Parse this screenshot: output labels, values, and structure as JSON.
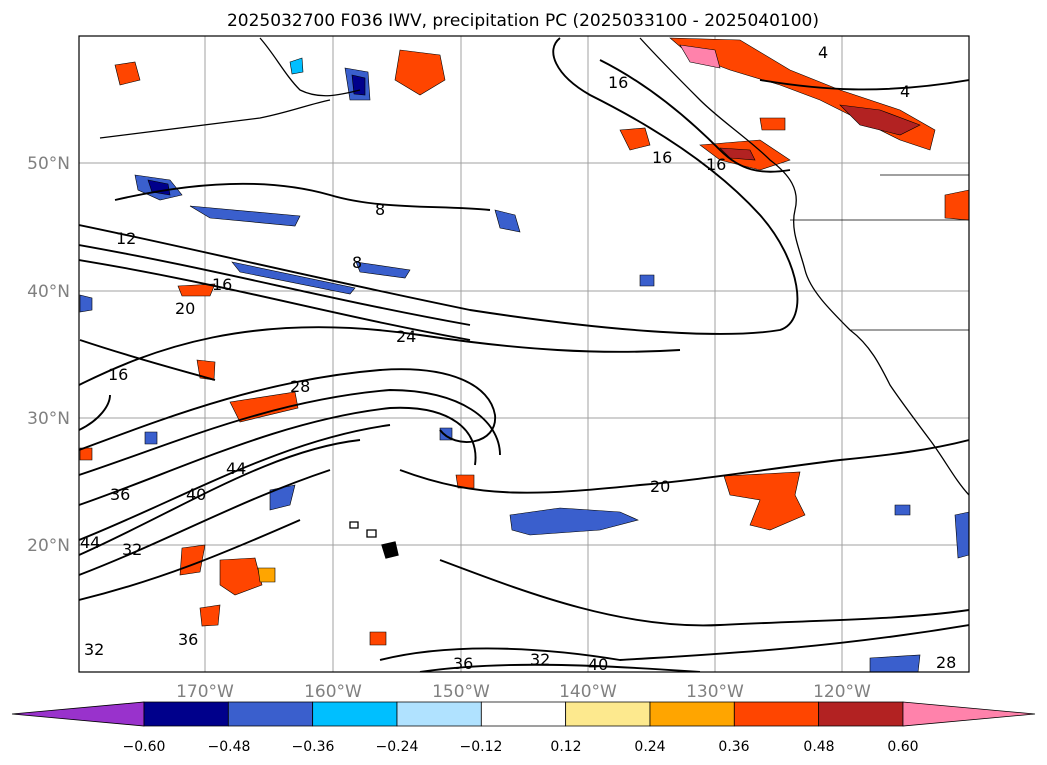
{
  "map": {
    "title": "2025032700 F036 IWV, precipitation PC (2025033100 - 2025040100)",
    "latitude_labels": [
      "50°N",
      "40°N",
      "30°N",
      "20°N"
    ],
    "longitude_labels": [
      "170°W",
      "160°W",
      "150°W",
      "140°W",
      "130°W",
      "120°W"
    ],
    "contour_labels": [
      "4",
      "4",
      "8",
      "8",
      "12",
      "16",
      "16",
      "16",
      "16",
      "16",
      "20",
      "20",
      "24",
      "28",
      "28",
      "32",
      "32",
      "32",
      "36",
      "36",
      "36",
      "40",
      "40",
      "44",
      "44"
    ],
    "colorbar": {
      "tick_labels": [
        "−0.60",
        "−0.48",
        "−0.36",
        "−0.24",
        "−0.12",
        "0.12",
        "0.24",
        "0.36",
        "0.48",
        "0.60"
      ],
      "colors": [
        "#9932cc",
        "#00008b",
        "#3a5fcd",
        "#00bfff",
        "#b0e2ff",
        "#ffffff",
        "#fde98e",
        "#ffa500",
        "#ff4500",
        "#b22222",
        "#ff82ab"
      ]
    },
    "colors": {
      "contour": "#000000",
      "grid": "#a0a0a0",
      "coast": "#000000"
    }
  }
}
